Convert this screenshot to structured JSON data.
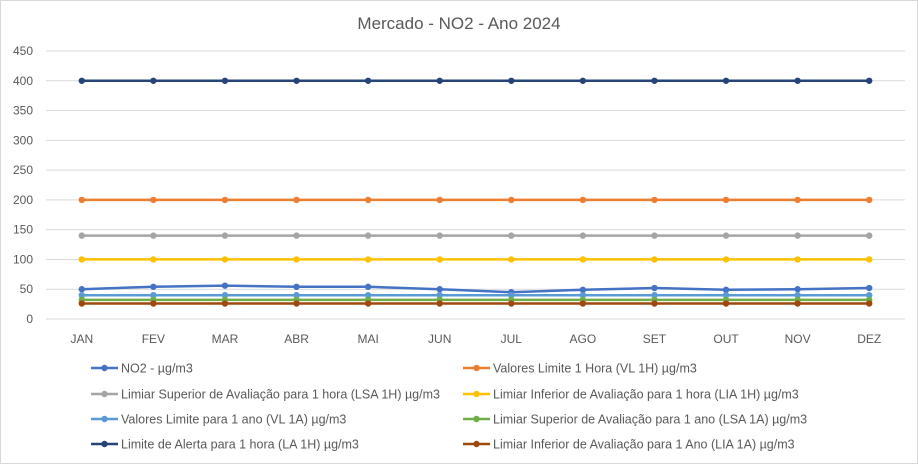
{
  "chart_data": {
    "type": "line",
    "title": "Mercado - NO2 - Ano 2024",
    "xlabel": "",
    "ylabel": "",
    "ylim": [
      0,
      450
    ],
    "yticks": [
      0,
      50,
      100,
      150,
      200,
      250,
      300,
      350,
      400,
      450
    ],
    "grid": true,
    "legend_position": "bottom",
    "categories": [
      "JAN",
      "FEV",
      "MAR",
      "ABR",
      "MAI",
      "JUN",
      "JUL",
      "AGO",
      "SET",
      "OUT",
      "NOV",
      "DEZ"
    ],
    "series": [
      {
        "name": "NO2 - µg/m3",
        "color": "#4472c4",
        "values": [
          50,
          54,
          56,
          54,
          54,
          50,
          45,
          49,
          52,
          49,
          50,
          52
        ]
      },
      {
        "name": "Valores Limite 1 Hora (VL 1H) µg/m3",
        "color": "#ed7d31",
        "values": [
          200,
          200,
          200,
          200,
          200,
          200,
          200,
          200,
          200,
          200,
          200,
          200
        ]
      },
      {
        "name": "Limiar Superior de Avaliação para 1 hora (LSA 1H) µg/m3",
        "color": "#a5a5a5",
        "values": [
          140,
          140,
          140,
          140,
          140,
          140,
          140,
          140,
          140,
          140,
          140,
          140
        ]
      },
      {
        "name": "Limiar Inferior de Avaliação para 1 hora (LIA 1H) µg/m3",
        "color": "#ffc000",
        "values": [
          100,
          100,
          100,
          100,
          100,
          100,
          100,
          100,
          100,
          100,
          100,
          100
        ]
      },
      {
        "name": "Valores Limite para 1 ano (VL 1A) µg/m3",
        "color": "#5b9bd5",
        "values": [
          40,
          40,
          40,
          40,
          40,
          40,
          40,
          40,
          40,
          40,
          40,
          40
        ]
      },
      {
        "name": "Limiar Superior de Avaliação para 1 ano (LSA 1A) µg/m3",
        "color": "#70ad47",
        "values": [
          32,
          32,
          32,
          32,
          32,
          32,
          32,
          32,
          32,
          32,
          32,
          32
        ]
      },
      {
        "name": "Limite de Alerta para 1 hora (LA 1H) µg/m3",
        "color": "#264478",
        "values": [
          400,
          400,
          400,
          400,
          400,
          400,
          400,
          400,
          400,
          400,
          400,
          400
        ]
      },
      {
        "name": "Limiar Inferior de Avaliação para 1 Ano (LIA 1A) µg/m3",
        "color": "#9e480e",
        "values": [
          26,
          26,
          26,
          26,
          26,
          26,
          26,
          26,
          26,
          26,
          26,
          26
        ]
      }
    ]
  }
}
